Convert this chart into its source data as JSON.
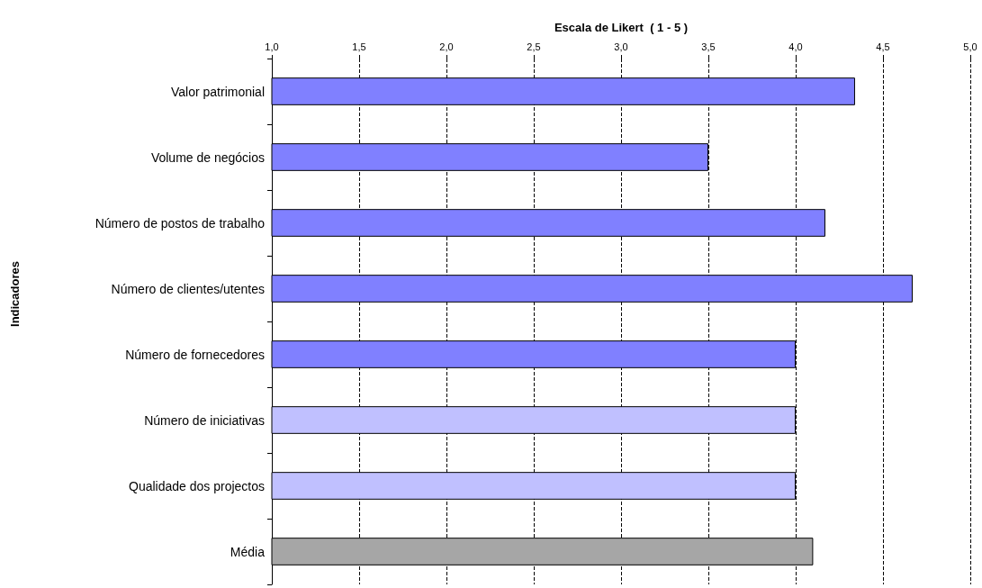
{
  "chart_data": {
    "type": "bar",
    "orientation": "horizontal",
    "xlabel": "Escala de Likert  ( 1 - 5 )",
    "annotations": [
      "Indicadores"
    ],
    "categories": [
      "Valor patrimonial",
      "Volume de negócios",
      "Número de postos de trabalho",
      "Número de clientes/utentes",
      "Número de fornecedores",
      "Número de iniciativas",
      "Qualidade dos projectos",
      "Média"
    ],
    "values": [
      4.34,
      3.5,
      4.17,
      4.67,
      4.0,
      4.0,
      4.0,
      4.1
    ],
    "colors": [
      "#8080ff",
      "#8080ff",
      "#8080ff",
      "#8080ff",
      "#8080ff",
      "#c0c0ff",
      "#c0c0ff",
      "#a6a6a6"
    ],
    "xlim": [
      1,
      5
    ],
    "xticks": [
      {
        "value": 1,
        "label": "1,0"
      },
      {
        "value": 1.5,
        "label": "1,5"
      },
      {
        "value": 2,
        "label": "2,0"
      },
      {
        "value": 2.5,
        "label": "2,5"
      },
      {
        "value": 3,
        "label": "3,0"
      },
      {
        "value": 3.5,
        "label": "3,5"
      },
      {
        "value": 4,
        "label": "4,0"
      },
      {
        "value": 4.5,
        "label": "4,5"
      },
      {
        "value": 5,
        "label": "5,0"
      }
    ],
    "grid": "x"
  }
}
